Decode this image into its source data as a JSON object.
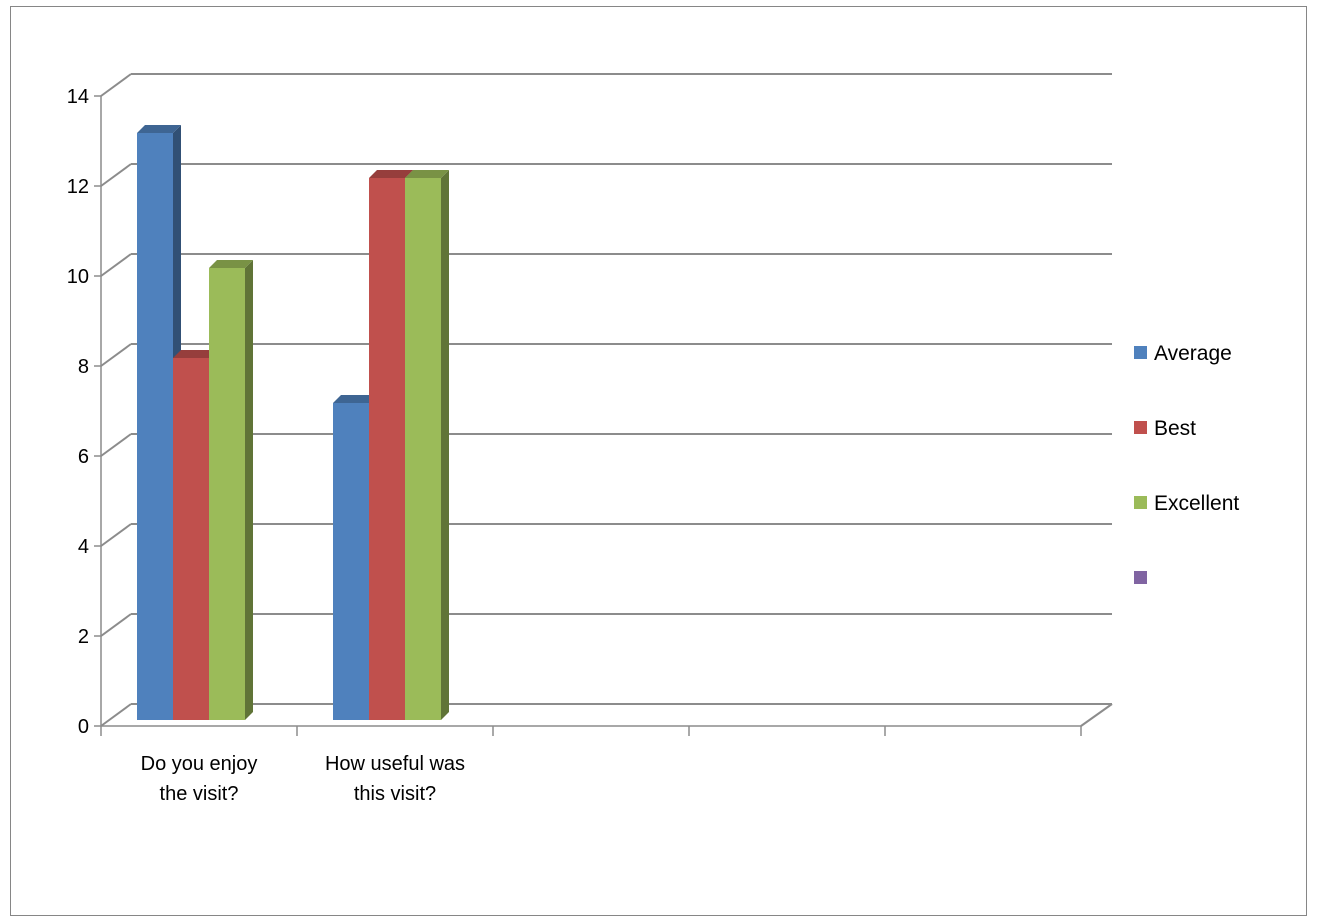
{
  "chart_data": {
    "type": "bar",
    "title": "",
    "xlabel": "",
    "ylabel": "",
    "ylim": [
      0,
      14
    ],
    "y_ticks": [
      "0",
      "2",
      "4",
      "6",
      "8",
      "10",
      "12",
      "14"
    ],
    "categories": [
      [
        "Do you enjoy",
        "the visit?"
      ],
      [
        "How useful was",
        "this visit?"
      ],
      [
        ""
      ],
      [
        ""
      ],
      [
        ""
      ]
    ],
    "series": [
      {
        "name": "Average",
        "color": "#4F81BD",
        "values": [
          13,
          7,
          null,
          null,
          null
        ]
      },
      {
        "name": "Best",
        "color": "#C0504D",
        "values": [
          8,
          12,
          null,
          null,
          null
        ]
      },
      {
        "name": "Excellent",
        "color": "#9BBB59",
        "values": [
          10,
          12,
          null,
          null,
          null
        ]
      },
      {
        "name": "",
        "color": "#8064A2",
        "values": [
          null,
          null,
          null,
          null,
          null
        ]
      }
    ],
    "grid": true,
    "style": "3d-clustered-column",
    "legend_position": "right"
  }
}
